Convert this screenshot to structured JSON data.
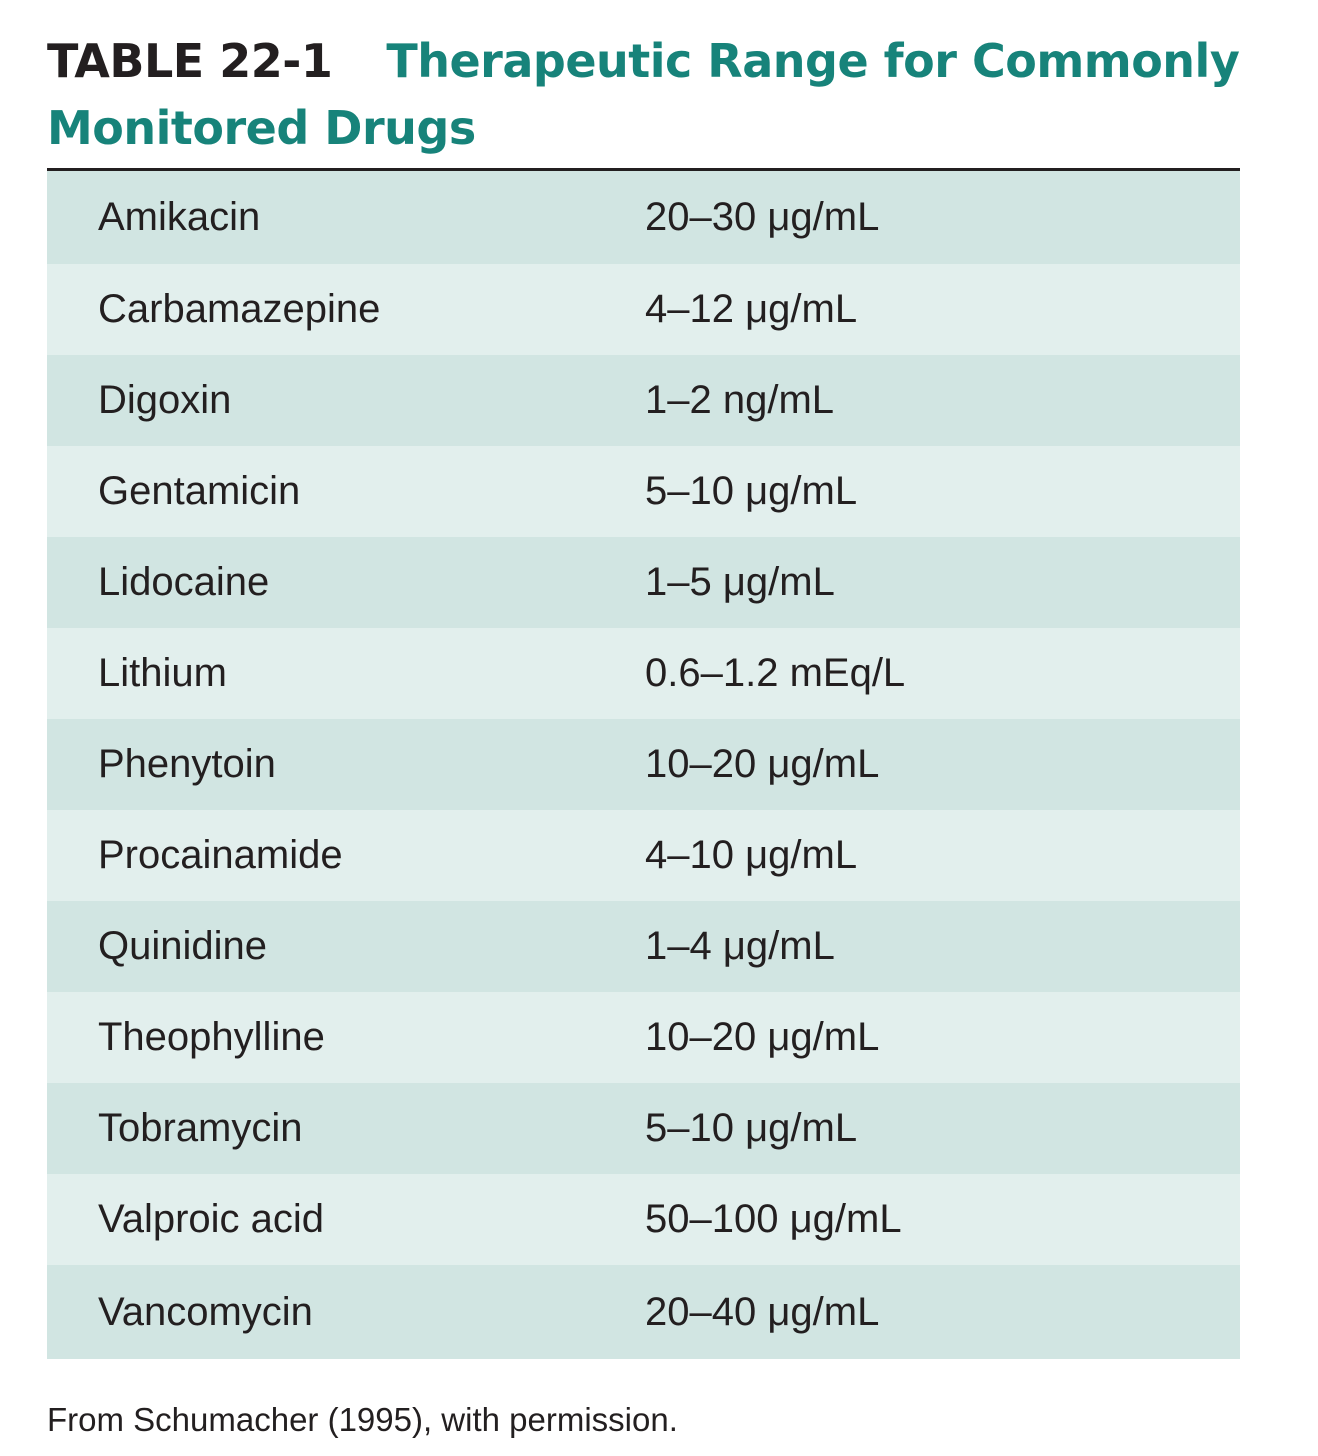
{
  "caption": {
    "label": "TABLE 22-1",
    "title": "Therapeutic Range for Commonly Monitored Drugs"
  },
  "rows": [
    {
      "drug": "Amikacin",
      "range": "20–30 μg/mL"
    },
    {
      "drug": "Carbamazepine",
      "range": "4–12 μg/mL"
    },
    {
      "drug": "Digoxin",
      "range": "1–2 ng/mL"
    },
    {
      "drug": "Gentamicin",
      "range": "5–10 μg/mL"
    },
    {
      "drug": "Lidocaine",
      "range": "1–5 μg/mL"
    },
    {
      "drug": "Lithium",
      "range": "0.6–1.2 mEq/L"
    },
    {
      "drug": "Phenytoin",
      "range": "10–20 μg/mL"
    },
    {
      "drug": "Procainamide",
      "range": "4–10 μg/mL"
    },
    {
      "drug": "Quinidine",
      "range": "1–4 μg/mL"
    },
    {
      "drug": "Theophylline",
      "range": "10–20 μg/mL"
    },
    {
      "drug": "Tobramycin",
      "range": "5–10 μg/mL"
    },
    {
      "drug": "Valproic acid",
      "range": "50–100 μg/mL"
    },
    {
      "drug": "Vancomycin",
      "range": "20–40 μg/mL"
    }
  ],
  "source_note": "From Schumacher (1995), with permission.",
  "colors": {
    "title_teal": "#17837a",
    "row_dark": "#d1e5e2",
    "row_light": "#e2efed",
    "text": "#231f20"
  }
}
